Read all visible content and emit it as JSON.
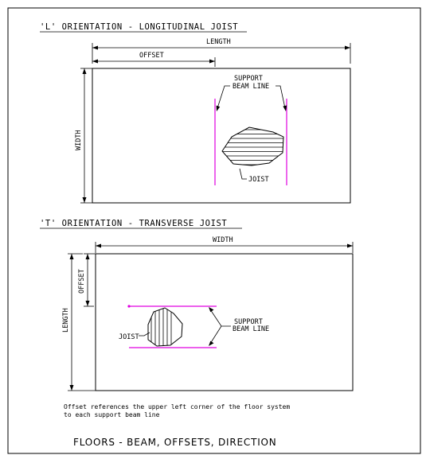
{
  "colors": {
    "support_beam": "#e000e0",
    "ink": "#000000",
    "background": "#ffffff"
  },
  "section_l": {
    "heading": "'L' ORIENTATION - LONGITUDINAL JOIST",
    "length_label": "LENGTH",
    "offset_label": "OFFSET",
    "width_label": "WIDTH",
    "support_label_1": "SUPPORT",
    "support_label_2": "BEAM LINE",
    "joist_label": "JOIST"
  },
  "section_t": {
    "heading": "'T' ORIENTATION - TRANSVERSE JOIST",
    "width_label": "WIDTH",
    "offset_label": "OFFSET",
    "length_label": "LENGTH",
    "support_label_1": "SUPPORT",
    "support_label_2": "BEAM LINE",
    "joist_label": "JOIST"
  },
  "note": {
    "line1": "Offset references the upper left corner of the floor system",
    "line2": "to each support beam line"
  },
  "footer_title": "FLOORS - BEAM, OFFSETS, DIRECTION"
}
